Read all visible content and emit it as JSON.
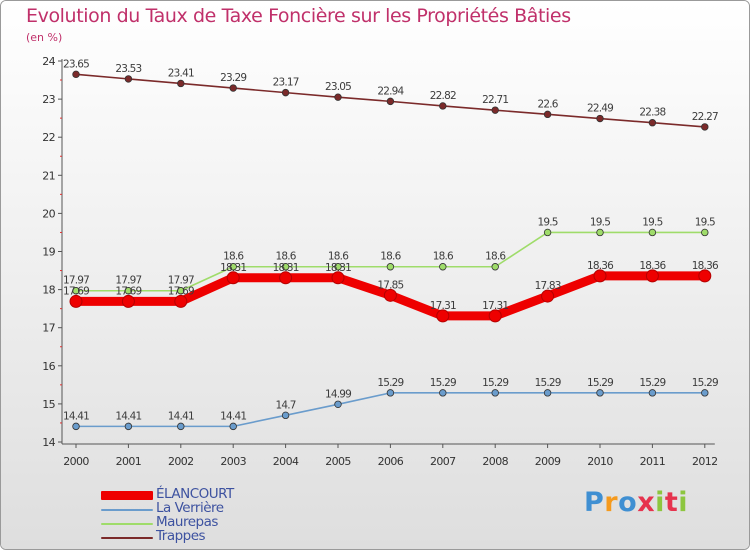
{
  "title": "Evolution du Taux de Taxe Foncière sur les Propriétés Bâties",
  "subtitle": "(en %)",
  "logo": {
    "text": "Proxiti",
    "colors": [
      "#3f8fd2",
      "#f59a1d",
      "#3f8fd2",
      "#e6334e",
      "#8dc63f",
      "#e6334e",
      "#8dc63f"
    ]
  },
  "chart_data": {
    "type": "line",
    "title": "Evolution du Taux de Taxe Foncière sur les Propriétés Bâties",
    "ylabel": "(en %)",
    "xlabel": "",
    "categories": [
      "2000",
      "2001",
      "2002",
      "2003",
      "2004",
      "2005",
      "2006",
      "2007",
      "2008",
      "2009",
      "2010",
      "2011",
      "2012"
    ],
    "ylim": [
      14,
      24
    ],
    "yticks": [
      14,
      15,
      16,
      17,
      18,
      19,
      20,
      21,
      22,
      23,
      24
    ],
    "series": [
      {
        "name": "Trappes",
        "color": "#7b2a2a",
        "values": [
          23.65,
          23.53,
          23.41,
          23.29,
          23.17,
          23.05,
          22.94,
          22.82,
          22.71,
          22.6,
          22.49,
          22.38,
          22.27
        ],
        "labels": [
          "23.65",
          "23.53",
          "23.41",
          "23.29",
          "23.17",
          "23.05",
          "22.94",
          "22.82",
          "22.71",
          "22.6",
          "22.49",
          "22.38",
          "22.27"
        ]
      },
      {
        "name": "Maurepas",
        "color": "#9fdc6a",
        "values": [
          17.97,
          17.97,
          17.97,
          18.6,
          18.6,
          18.6,
          18.6,
          18.6,
          18.6,
          19.5,
          19.5,
          19.5,
          19.5
        ],
        "labels": [
          "17.97",
          "17.97",
          "17.97",
          "18.6",
          "18.6",
          "18.6",
          "18.6",
          "18.6",
          "18.6",
          "19.5",
          "19.5",
          "19.5",
          "19.5"
        ]
      },
      {
        "name": "La Verrière",
        "color": "#6a9ccc",
        "values": [
          14.41,
          14.41,
          14.41,
          14.41,
          14.7,
          14.99,
          15.29,
          15.29,
          15.29,
          15.29,
          15.29,
          15.29,
          15.29
        ],
        "labels": [
          "14.41",
          "14.41",
          "14.41",
          "14.41",
          "14.7",
          "14.99",
          "15.29",
          "15.29",
          "15.29",
          "15.29",
          "15.29",
          "15.29",
          "15.29"
        ]
      },
      {
        "name": "ÉLANCOURT",
        "color": "#ee0000",
        "values": [
          17.69,
          17.69,
          17.69,
          18.31,
          18.31,
          18.31,
          17.85,
          17.31,
          17.31,
          17.83,
          18.36,
          18.36,
          18.36
        ],
        "labels": [
          "17.69",
          "17.69",
          "17.69",
          "18.31",
          "18.31",
          "18.31",
          "17.85",
          "17.31",
          "17.31",
          "17.83",
          "18.36",
          "18.36",
          "18.36"
        ]
      }
    ],
    "legend": [
      "ÉLANCOURT",
      "La Verrière",
      "Maurepas",
      "Trappes"
    ],
    "legend_position": "bottom-left",
    "grid": false
  }
}
